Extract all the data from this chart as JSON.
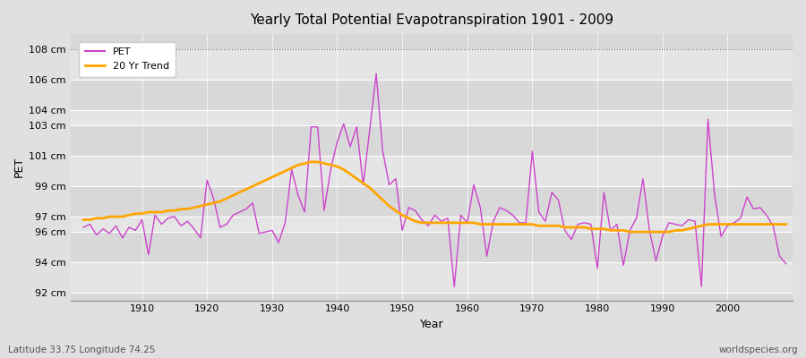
{
  "title": "Yearly Total Potential Evapotranspiration 1901 - 2009",
  "xlabel": "Year",
  "ylabel": "PET",
  "subtitle_left": "Latitude 33.75 Longitude 74.25",
  "subtitle_right": "worldspecies.org",
  "pet_color": "#cc44cc",
  "trend_color": "#FFA500",
  "fig_bg_color": "#e0e0e0",
  "plot_bg_color": "#d8d8d8",
  "grid_color": "#ffffff",
  "years": [
    1901,
    1902,
    1903,
    1904,
    1905,
    1906,
    1907,
    1908,
    1909,
    1910,
    1911,
    1912,
    1913,
    1914,
    1915,
    1916,
    1917,
    1918,
    1919,
    1920,
    1921,
    1922,
    1923,
    1924,
    1925,
    1926,
    1927,
    1928,
    1929,
    1930,
    1931,
    1932,
    1933,
    1934,
    1935,
    1936,
    1937,
    1938,
    1939,
    1940,
    1941,
    1942,
    1943,
    1944,
    1945,
    1946,
    1947,
    1948,
    1949,
    1950,
    1951,
    1952,
    1953,
    1954,
    1955,
    1956,
    1957,
    1958,
    1959,
    1960,
    1961,
    1962,
    1963,
    1964,
    1965,
    1966,
    1967,
    1968,
    1969,
    1970,
    1971,
    1972,
    1973,
    1974,
    1975,
    1976,
    1977,
    1978,
    1979,
    1980,
    1981,
    1982,
    1983,
    1984,
    1985,
    1986,
    1987,
    1988,
    1989,
    1990,
    1991,
    1992,
    1993,
    1994,
    1995,
    1996,
    1997,
    1998,
    1999,
    2000,
    2001,
    2002,
    2003,
    2004,
    2005,
    2006,
    2007,
    2008,
    2009
  ],
  "pet_values": [
    96.3,
    96.5,
    95.8,
    96.2,
    95.9,
    96.4,
    95.6,
    96.3,
    96.1,
    96.8,
    94.5,
    97.1,
    96.5,
    96.9,
    97.0,
    96.4,
    96.7,
    96.2,
    95.6,
    99.4,
    98.2,
    96.3,
    96.5,
    97.1,
    97.3,
    97.5,
    97.9,
    95.9,
    96.0,
    96.1,
    95.3,
    96.6,
    100.1,
    98.4,
    97.3,
    102.9,
    102.9,
    97.4,
    100.1,
    101.9,
    103.1,
    101.6,
    102.9,
    99.1,
    102.7,
    106.4,
    101.3,
    99.1,
    99.5,
    96.1,
    97.6,
    97.4,
    96.8,
    96.4,
    97.1,
    96.7,
    96.9,
    92.4,
    97.1,
    96.6,
    99.1,
    97.6,
    94.4,
    96.7,
    97.6,
    97.4,
    97.1,
    96.6,
    96.6,
    101.3,
    97.3,
    96.7,
    98.6,
    98.1,
    96.1,
    95.5,
    96.5,
    96.6,
    96.5,
    93.6,
    98.6,
    96.1,
    96.5,
    93.8,
    96.1,
    96.9,
    99.5,
    96.1,
    94.1,
    95.7,
    96.6,
    96.5,
    96.4,
    96.8,
    96.7,
    92.4,
    103.4,
    98.5,
    95.7,
    96.4,
    96.6,
    96.9,
    98.3,
    97.5,
    97.6,
    97.1,
    96.4,
    94.4,
    93.9
  ],
  "trend_values": [
    96.8,
    96.8,
    96.9,
    96.9,
    97.0,
    97.0,
    97.0,
    97.1,
    97.2,
    97.2,
    97.3,
    97.3,
    97.3,
    97.4,
    97.4,
    97.5,
    97.5,
    97.6,
    97.7,
    97.8,
    97.9,
    98.0,
    98.2,
    98.4,
    98.6,
    98.8,
    99.0,
    99.2,
    99.4,
    99.6,
    99.8,
    100.0,
    100.2,
    100.4,
    100.5,
    100.6,
    100.6,
    100.5,
    100.4,
    100.3,
    100.1,
    99.8,
    99.5,
    99.2,
    98.9,
    98.5,
    98.1,
    97.7,
    97.4,
    97.1,
    96.9,
    96.7,
    96.6,
    96.6,
    96.6,
    96.6,
    96.6,
    96.6,
    96.6,
    96.6,
    96.6,
    96.5,
    96.5,
    96.5,
    96.5,
    96.5,
    96.5,
    96.5,
    96.5,
    96.5,
    96.4,
    96.4,
    96.4,
    96.4,
    96.3,
    96.3,
    96.3,
    96.3,
    96.2,
    96.2,
    96.2,
    96.1,
    96.1,
    96.1,
    96.0,
    96.0,
    96.0,
    96.0,
    96.0,
    96.0,
    96.0,
    96.1,
    96.1,
    96.2,
    96.3,
    96.4,
    96.5,
    96.5,
    96.5,
    96.5,
    96.5,
    96.5,
    96.5,
    96.5,
    96.5,
    96.5,
    96.5,
    96.5,
    96.5
  ],
  "ytick_positions": [
    92,
    94,
    96,
    97,
    99,
    101,
    103,
    104,
    106,
    108
  ],
  "ytick_labels": [
    "92 cm",
    "94 cm",
    "96 cm",
    "97 cm",
    "99 cm",
    "101 cm",
    "103 cm",
    "104 cm",
    "106 cm",
    "108 cm"
  ],
  "xticks": [
    1910,
    1920,
    1930,
    1940,
    1950,
    1960,
    1970,
    1980,
    1990,
    2000
  ],
  "xlim": [
    1899,
    2010
  ],
  "ylim": [
    91.5,
    109.0
  ]
}
